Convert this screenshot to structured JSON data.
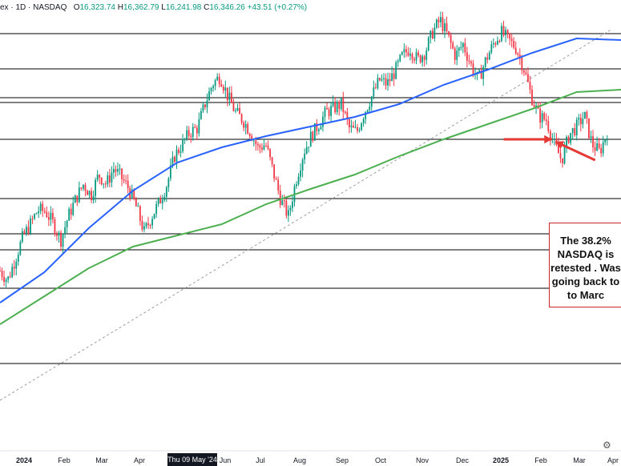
{
  "legend": {
    "symbol": "ex · 1D · NASDAQ",
    "open_label": "O",
    "open": "16,323.74",
    "high_label": "H",
    "high": "16,362.79",
    "low_label": "L",
    "low": "16,241.98",
    "close_label": "C",
    "close": "16,346.26",
    "change": "+43.51 (+0.27%)"
  },
  "callout": {
    "text": "The 38.2%\nNASDAQ is\nretested . Was\ngoing back to\nto Marc"
  },
  "cursor_date": "Thu 09 May '24",
  "colors": {
    "candle_up": "#089981",
    "candle_down": "#f23645",
    "ma_blue": "#2962ff",
    "ma_green": "#4caf50",
    "arrow_red": "#e53935",
    "hline": "#000000",
    "trendline": "#9e9e9e"
  },
  "chart_data": {
    "type": "candlestick",
    "x_axis": {
      "ticks": [
        {
          "label": "2024",
          "bold": true
        },
        {
          "label": "Feb"
        },
        {
          "label": "Mar"
        },
        {
          "label": "Apr"
        },
        {
          "label": "Jun"
        },
        {
          "label": "Jul"
        },
        {
          "label": "Aug"
        },
        {
          "label": "Sep"
        },
        {
          "label": "Oct"
        },
        {
          "label": "Nov"
        },
        {
          "label": "Dec"
        },
        {
          "label": "2025",
          "bold": true
        },
        {
          "label": "Feb"
        },
        {
          "label": "Mar"
        },
        {
          "label": "Apr"
        }
      ]
    },
    "price_range": [
      12400,
      17800
    ],
    "horizontal_levels": [
      17580,
      17140,
      16780,
      16720,
      16260,
      15520,
      15080,
      14880,
      14400,
      13460
    ],
    "trendline": {
      "from": {
        "day": 0,
        "price": 13000
      },
      "to": {
        "day": 355,
        "price": 17640
      }
    },
    "close_series": [
      14620,
      14500,
      14760,
      15040,
      15200,
      15380,
      15360,
      15210,
      15000,
      15300,
      15520,
      15700,
      15560,
      15820,
      15700,
      15900,
      15780,
      15640,
      15400,
      15100,
      15300,
      15480,
      15700,
      16050,
      16200,
      16350,
      16400,
      16700,
      16950,
      17050,
      16800,
      16600,
      16500,
      16350,
      16150,
      16200,
      15850,
      15500,
      15300,
      15750,
      16100,
      16300,
      16450,
      16600,
      16650,
      16700,
      16400,
      16350,
      16600,
      16800,
      17000,
      16950,
      17100,
      17300,
      17400,
      17250,
      17350,
      17600,
      17750,
      17550,
      17300,
      17450,
      17200,
      17000,
      17250,
      17450,
      17600,
      17500,
      17400,
      17150,
      16800,
      16550,
      16500,
      16200,
      16000,
      16320,
      16420,
      16560,
      16200,
      16100,
      16346
    ],
    "series": [
      {
        "name": "",
        "color": "#2962ff",
        "values": [
          14220,
          14600,
          15150,
          15620,
          15970,
          16160,
          16300,
          16420,
          16540,
          16700,
          16940,
          17130,
          17340,
          17520,
          17500
        ]
      },
      {
        "name": "",
        "color": "#4caf50",
        "values": [
          13950,
          14300,
          14650,
          14920,
          15060,
          15200,
          15450,
          15640,
          15820,
          16050,
          16260,
          16450,
          16640,
          16850,
          16880
        ]
      }
    ],
    "annotation_arrows": [
      {
        "from": {
          "day": 292,
          "price": 16260
        },
        "to": {
          "day": 320,
          "price": 16260
        }
      },
      {
        "from": {
          "day": 345,
          "price": 16000
        },
        "to": {
          "day": 322,
          "price": 16230
        }
      }
    ]
  }
}
